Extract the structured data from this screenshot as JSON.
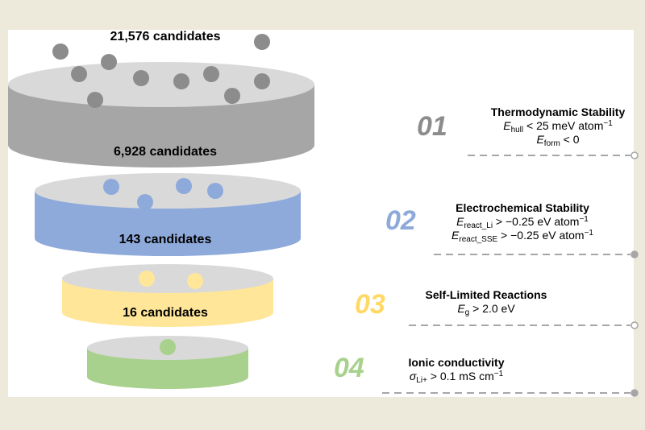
{
  "colors": {
    "gray": "#a6a6a6",
    "blue": "#8eaadb",
    "yellow": "#ffe699",
    "green": "#a9d18e",
    "num01": "#8c8c8c",
    "num02": "#8eaadb",
    "num03": "#ffd966",
    "num04": "#a9d18e"
  },
  "funnel": {
    "top_label": "21,576 candidates",
    "levels": [
      {
        "label": "6,928 candidates",
        "color": "gray"
      },
      {
        "label": "143 candidates",
        "color": "blue"
      },
      {
        "label": "16 candidates",
        "color": "yellow"
      },
      {
        "label": "",
        "color": "green"
      }
    ]
  },
  "steps": [
    {
      "number": "01",
      "title": "Thermodynamic Stability",
      "criteria": [
        {
          "sym": "E",
          "sub": "hull",
          "rest": " < 25 meV atom",
          "sup": "−1"
        },
        {
          "sym": "E",
          "sub": "form",
          "rest": " < 0",
          "sup": ""
        }
      ],
      "end_marker": "open-circle"
    },
    {
      "number": "02",
      "title": "Electrochemical Stability",
      "criteria": [
        {
          "sym": "E",
          "sub": "react_Li",
          "rest": " > −0.25 eV atom",
          "sup": "−1"
        },
        {
          "sym": "E",
          "sub": "react_SSE",
          "rest": " > −0.25 eV atom",
          "sup": "−1"
        }
      ],
      "end_marker": "filled-circle"
    },
    {
      "number": "03",
      "title": "Self-Limited Reactions",
      "criteria": [
        {
          "sym": "E",
          "sub": "g",
          "rest": " > 2.0 eV",
          "sup": ""
        }
      ],
      "end_marker": "open-circle"
    },
    {
      "number": "04",
      "title": "Ionic conductivity",
      "criteria": [
        {
          "sym": "σ",
          "sub": "Li+",
          "rest": " > 0.1 mS cm",
          "sup": "−1"
        }
      ],
      "end_marker": "filled-circle"
    }
  ]
}
